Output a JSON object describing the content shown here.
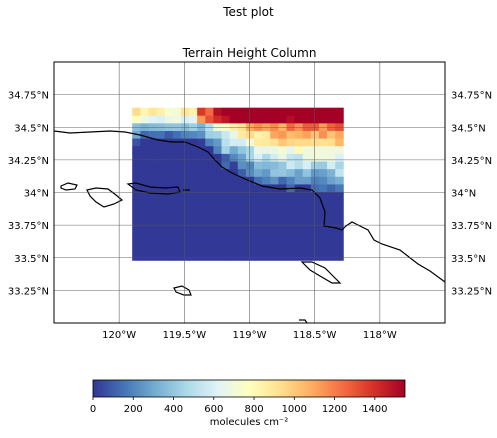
{
  "figure": {
    "suptitle": "Test plot",
    "colorbar_label": "molecules cm⁻²"
  },
  "chart_data": {
    "type": "heatmap",
    "projection": "PlateCarree map",
    "title": "Terrain Height Column",
    "x_extent": [
      -120.5,
      -117.5
    ],
    "y_extent": [
      33,
      35
    ],
    "grid": true,
    "x_ticks": [
      {
        "value": -120.0,
        "label": "120°W"
      },
      {
        "value": -119.5,
        "label": "119.5°W"
      },
      {
        "value": -119.0,
        "label": "119°W"
      },
      {
        "value": -118.5,
        "label": "118.5°W"
      },
      {
        "value": -118.0,
        "label": "118°W"
      }
    ],
    "y_ticks": [
      {
        "value": 33.25,
        "label": "33.25°N"
      },
      {
        "value": 33.5,
        "label": "33.5°N"
      },
      {
        "value": 33.75,
        "label": "33.75°N"
      },
      {
        "value": 34.0,
        "label": "34°N"
      },
      {
        "value": 34.25,
        "label": "34.25°N"
      },
      {
        "value": 34.5,
        "label": "34.5°N"
      },
      {
        "value": 34.75,
        "label": "34.75°N"
      }
    ],
    "data_extent": {
      "lon": [
        -119.9,
        -118.28
      ],
      "lat": [
        33.48,
        34.65
      ]
    },
    "colormap": "RdYlBu_r",
    "colorbar": {
      "range": [
        0,
        1550
      ],
      "ticks": [
        0,
        200,
        400,
        600,
        800,
        1000,
        1200,
        1400
      ],
      "colors": [
        "#313695",
        "#4575b4",
        "#74add1",
        "#abd9e9",
        "#e0f3f8",
        "#ffffbf",
        "#fee090",
        "#fdae61",
        "#f46d43",
        "#d73027",
        "#a50026"
      ]
    }
  },
  "coastline_color": "#000000"
}
